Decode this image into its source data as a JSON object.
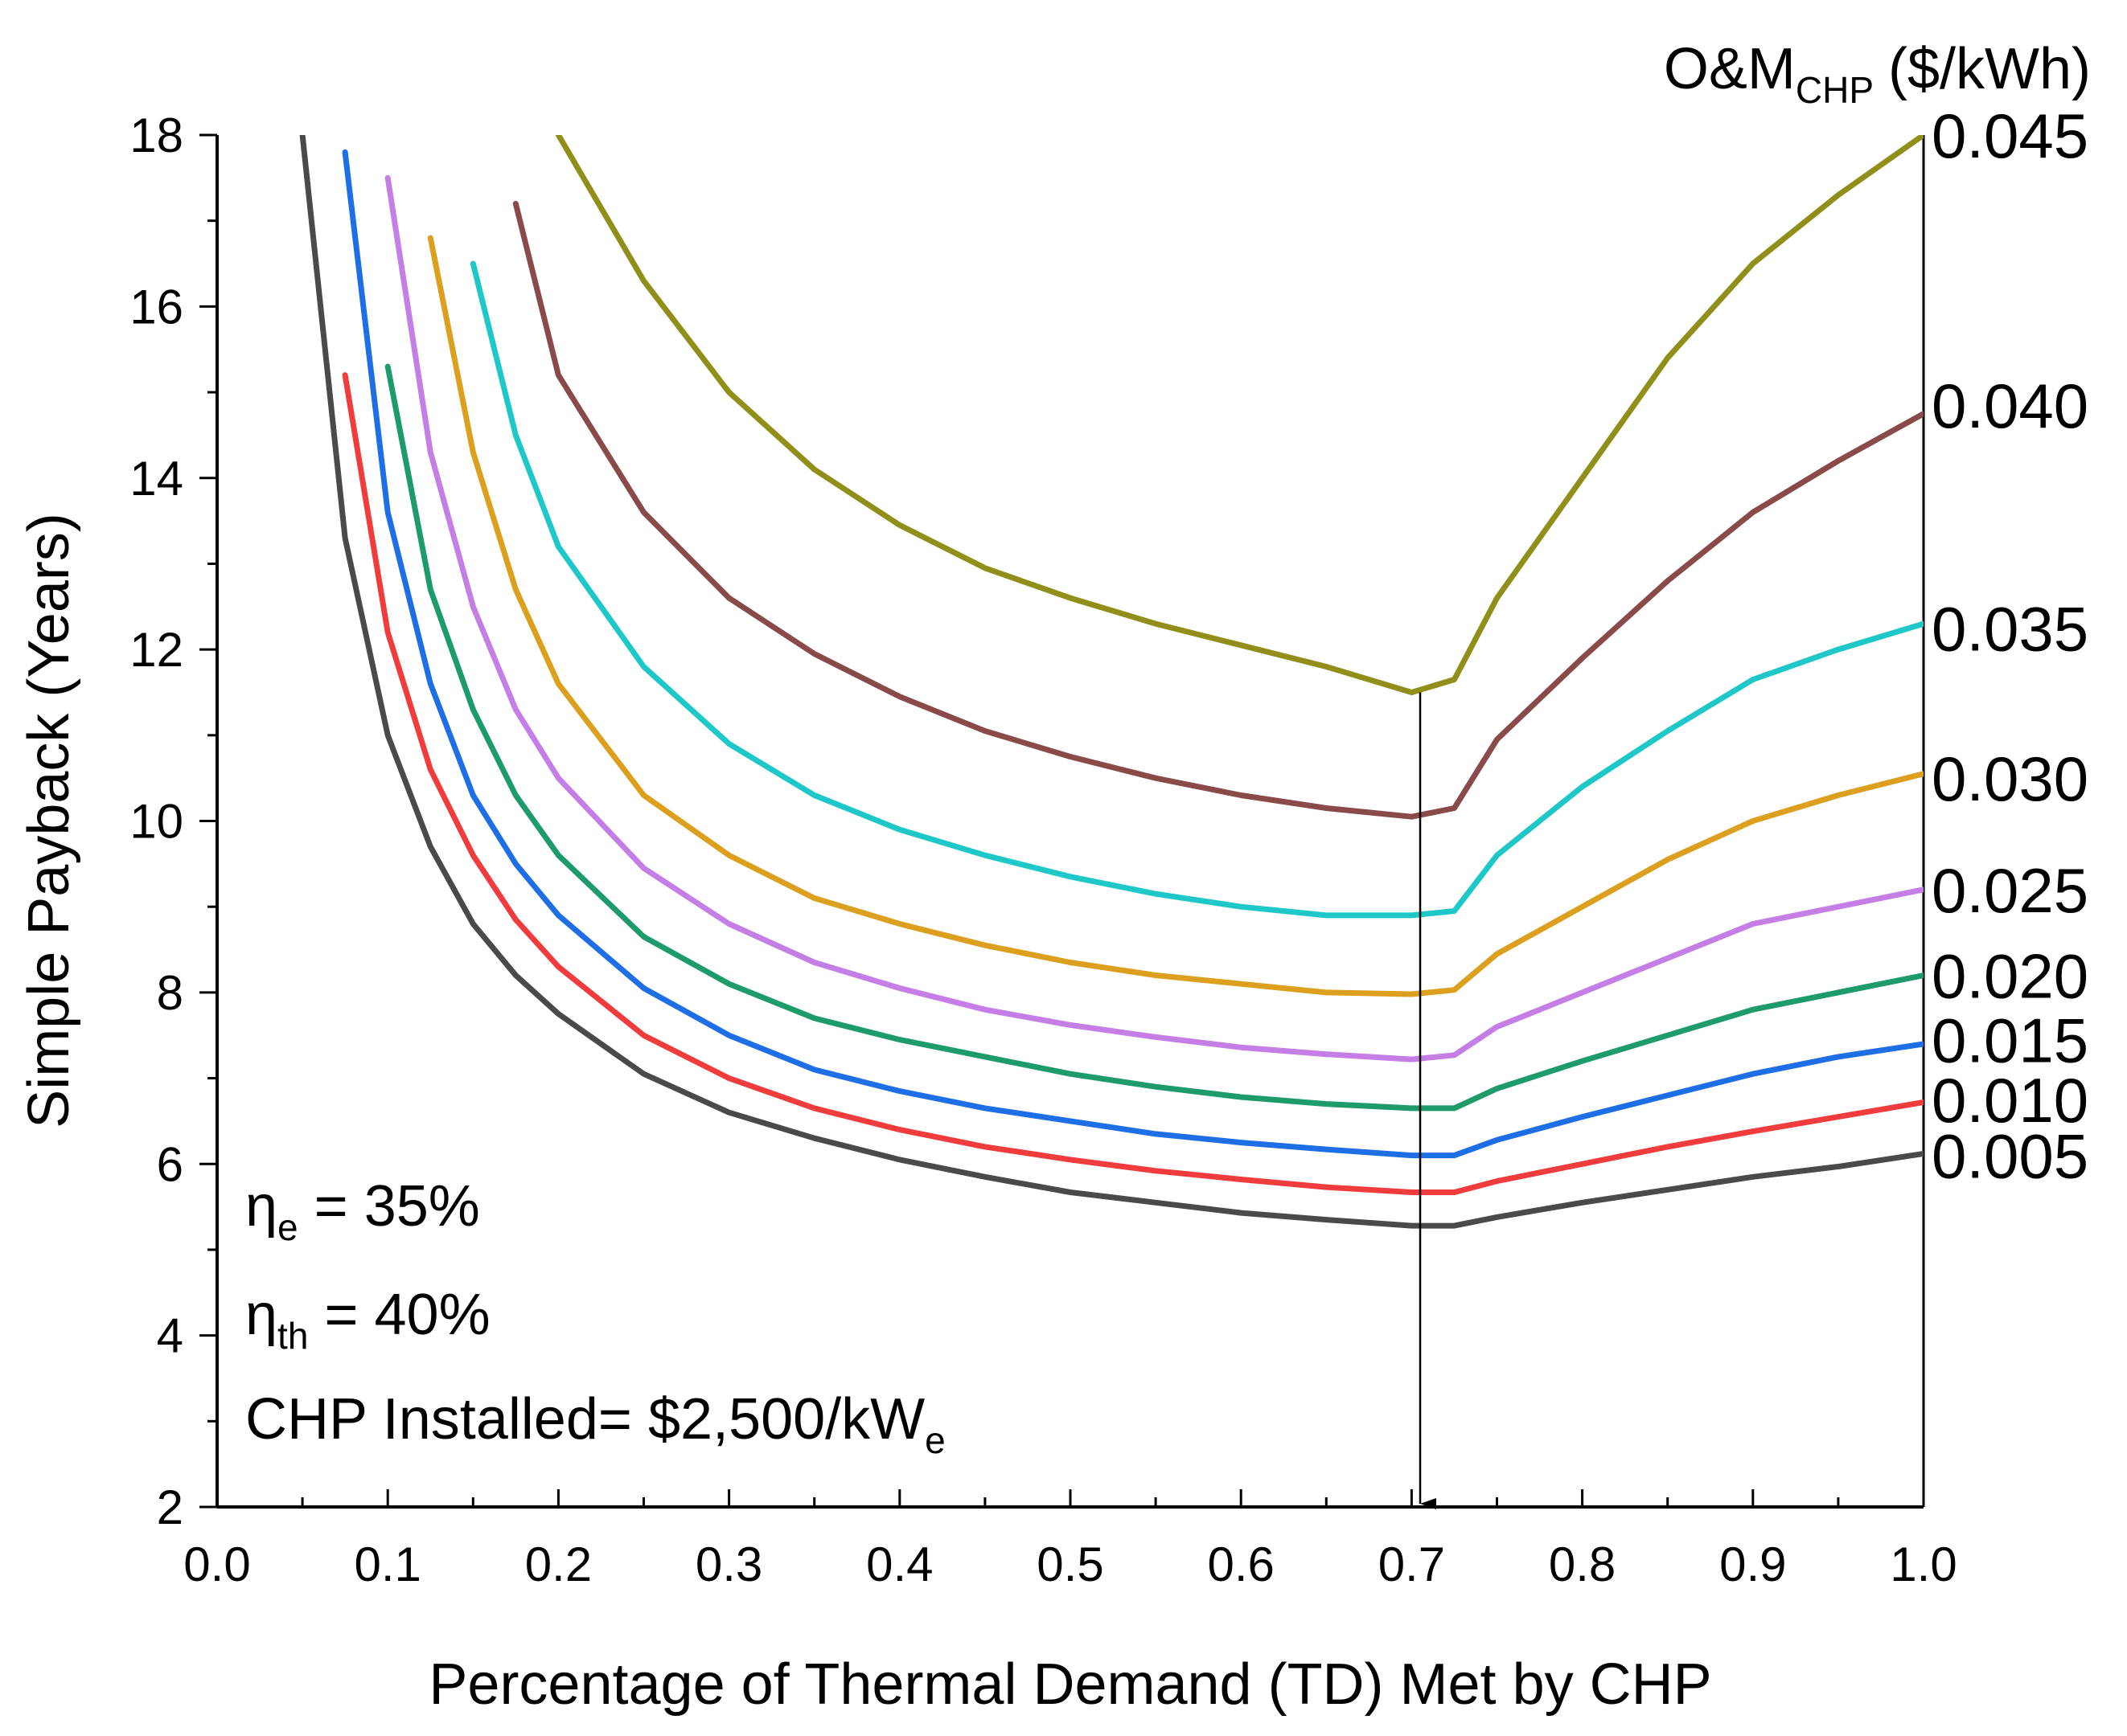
{
  "chart_data": {
    "type": "line",
    "title": "",
    "xlabel": "Percentage of Thermal Demand (TD) Met by CHP",
    "ylabel": "Simple Payback (Years)",
    "xlim": [
      0.0,
      1.0
    ],
    "ylim": [
      2,
      18
    ],
    "x_ticks": [
      "0.0",
      "0.1",
      "0.2",
      "0.3",
      "0.4",
      "0.5",
      "0.6",
      "0.7",
      "0.8",
      "0.9",
      "1.0"
    ],
    "y_ticks": [
      "2",
      "4",
      "6",
      "8",
      "10",
      "12",
      "14",
      "16",
      "18"
    ],
    "grid": false,
    "legend": {
      "title_main": "O&M",
      "title_sub": "CHP",
      "title_unit": "($/kWh)",
      "placement": "right"
    },
    "annotations": {
      "eta_e": {
        "symbol": "η",
        "sub": "e",
        "text": " = 35%"
      },
      "eta_th": {
        "symbol": "η",
        "sub": "th",
        "text": " = 40%"
      },
      "install_cost": {
        "text": "CHP Installed= $2,500/kW",
        "sub": "e"
      },
      "arrow_x": 0.705
    },
    "x": [
      0.05,
      0.075,
      0.1,
      0.125,
      0.15,
      0.175,
      0.2,
      0.25,
      0.3,
      0.35,
      0.4,
      0.45,
      0.5,
      0.55,
      0.6,
      0.65,
      0.7,
      0.725,
      0.75,
      0.8,
      0.85,
      0.9,
      0.95,
      1.0
    ],
    "series": [
      {
        "name": "0.005",
        "color": "#4a4a4a",
        "values": [
          18.0,
          13.3,
          11.0,
          9.7,
          8.8,
          8.2,
          7.75,
          7.05,
          6.6,
          6.3,
          6.05,
          5.85,
          5.67,
          5.55,
          5.43,
          5.35,
          5.28,
          5.28,
          5.38,
          5.55,
          5.7,
          5.85,
          5.97,
          6.12
        ]
      },
      {
        "name": "0.010",
        "color": "#f03c3c",
        "values": [
          null,
          15.2,
          12.2,
          10.6,
          9.6,
          8.85,
          8.3,
          7.5,
          7.0,
          6.65,
          6.4,
          6.2,
          6.05,
          5.92,
          5.82,
          5.73,
          5.67,
          5.67,
          5.8,
          6.0,
          6.2,
          6.38,
          6.55,
          6.72
        ]
      },
      {
        "name": "0.015",
        "color": "#1e6ee6",
        "values": [
          null,
          17.8,
          13.6,
          11.6,
          10.3,
          9.5,
          8.9,
          8.05,
          7.5,
          7.1,
          6.85,
          6.65,
          6.5,
          6.35,
          6.25,
          6.17,
          6.1,
          6.1,
          6.28,
          6.55,
          6.8,
          7.05,
          7.25,
          7.4
        ]
      },
      {
        "name": "0.020",
        "color": "#1e9b6a",
        "values": [
          null,
          null,
          15.3,
          12.7,
          11.3,
          10.3,
          9.6,
          8.65,
          8.1,
          7.7,
          7.45,
          7.25,
          7.05,
          6.9,
          6.78,
          6.7,
          6.65,
          6.65,
          6.88,
          7.2,
          7.5,
          7.8,
          8.0,
          8.2
        ]
      },
      {
        "name": "0.025",
        "color": "#c47ee6",
        "values": [
          null,
          null,
          17.5,
          14.3,
          12.5,
          11.3,
          10.5,
          9.45,
          8.8,
          8.35,
          8.05,
          7.8,
          7.62,
          7.48,
          7.36,
          7.28,
          7.22,
          7.27,
          7.6,
          8.0,
          8.4,
          8.8,
          9.0,
          9.2
        ]
      },
      {
        "name": "0.030",
        "color": "#dca01e",
        "values": [
          null,
          null,
          null,
          16.8,
          14.3,
          12.7,
          11.6,
          10.3,
          9.6,
          9.1,
          8.8,
          8.55,
          8.35,
          8.2,
          8.1,
          8.0,
          7.98,
          8.03,
          8.45,
          9.0,
          9.55,
          10.0,
          10.3,
          10.55
        ]
      },
      {
        "name": "0.035",
        "color": "#1ec8c8",
        "values": [
          null,
          null,
          null,
          null,
          16.5,
          14.5,
          13.2,
          11.8,
          10.9,
          10.3,
          9.9,
          9.6,
          9.35,
          9.15,
          9.0,
          8.9,
          8.9,
          8.95,
          9.6,
          10.4,
          11.05,
          11.65,
          12.0,
          12.3
        ]
      },
      {
        "name": "0.040",
        "color": "#8b4a4a",
        "values": [
          null,
          null,
          null,
          null,
          null,
          17.2,
          15.2,
          13.6,
          12.6,
          11.95,
          11.45,
          11.05,
          10.75,
          10.5,
          10.3,
          10.15,
          10.05,
          10.15,
          10.95,
          11.9,
          12.8,
          13.6,
          14.2,
          14.75
        ]
      },
      {
        "name": "0.045",
        "color": "#8f8f1a",
        "values": [
          null,
          null,
          null,
          null,
          null,
          null,
          18.0,
          16.3,
          15.0,
          14.1,
          13.45,
          12.95,
          12.6,
          12.3,
          12.05,
          11.8,
          11.5,
          11.65,
          12.6,
          14.0,
          15.4,
          16.5,
          17.3,
          18.0
        ]
      }
    ]
  }
}
